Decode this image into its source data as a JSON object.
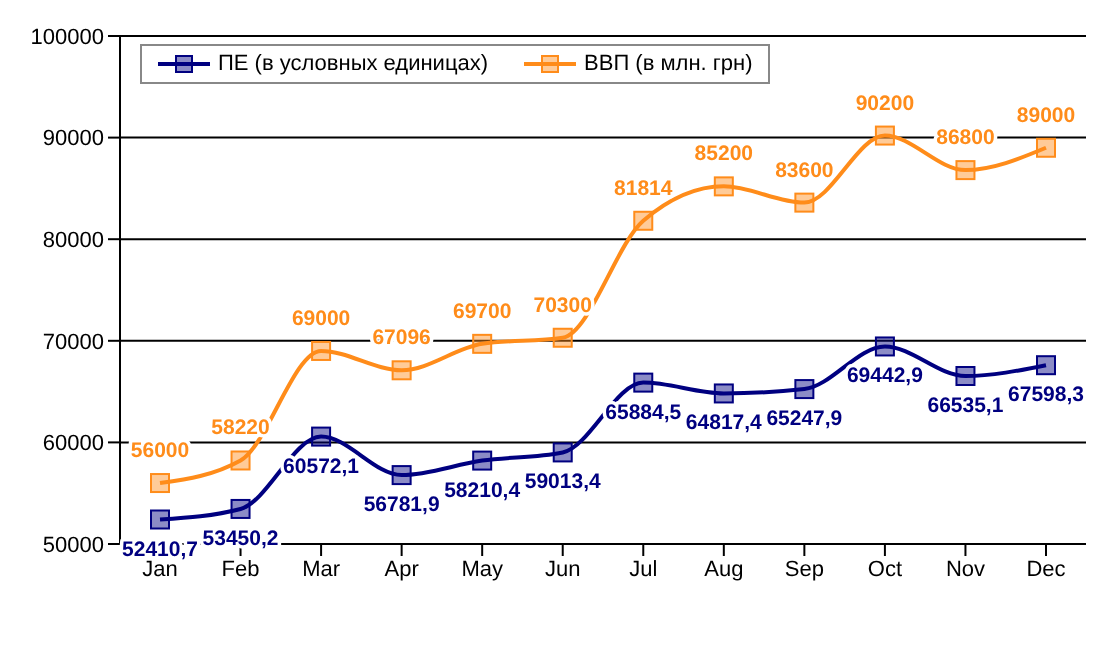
{
  "chart_data": {
    "type": "line",
    "categories": [
      "Jan",
      "Feb",
      "Mar",
      "Apr",
      "May",
      "Jun",
      "Jul",
      "Aug",
      "Sep",
      "Oct",
      "Nov",
      "Dec"
    ],
    "series": [
      {
        "name": "ПЕ (в условных единицах)",
        "color": "#000080",
        "values": [
          52410.7,
          53450.2,
          60572.1,
          56781.9,
          58210.4,
          59013.4,
          65884.5,
          64817.4,
          65247.9,
          69442.9,
          66535.1,
          67598.3
        ],
        "value_labels": [
          "52410,7",
          "53450,2",
          "60572,1",
          "56781,9",
          "58210,4",
          "59013,4",
          "65884,5",
          "64817,4",
          "65247,9",
          "69442,9",
          "66535,1",
          "67598,3"
        ]
      },
      {
        "name": "ВВП (в млн. грн)",
        "color": "#ff8c1a",
        "values": [
          56000,
          58220,
          69000,
          67096,
          69700,
          70300,
          81814,
          85200,
          83600,
          90200,
          86800,
          89000
        ],
        "value_labels": [
          "56000",
          "58220",
          "69000",
          "67096",
          "69700",
          "70300",
          "81814",
          "85200",
          "83600",
          "90200",
          "86800",
          "89000"
        ]
      }
    ],
    "ylim": [
      50000,
      100000
    ],
    "yticks": [
      50000,
      60000,
      70000,
      80000,
      90000,
      100000
    ],
    "grid": "y",
    "legend": "top left",
    "marker": "square"
  }
}
